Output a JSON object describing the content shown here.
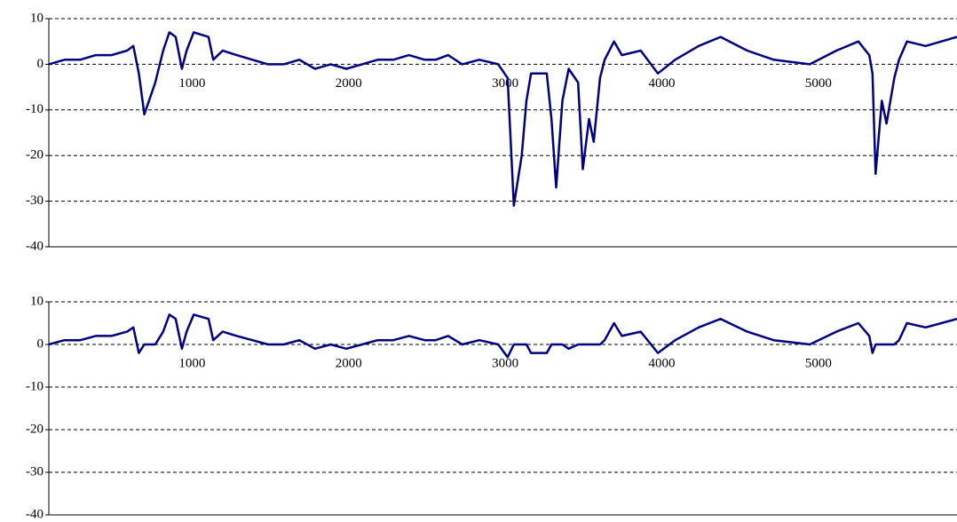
{
  "chart_data": [
    {
      "type": "line",
      "x": [
        0,
        100,
        200,
        300,
        400,
        500,
        540,
        575,
        610,
        680,
        730,
        770,
        810,
        850,
        880,
        925,
        1020,
        1050,
        1110,
        1200,
        1300,
        1400,
        1500,
        1600,
        1700,
        1800,
        1900,
        2000,
        2100,
        2200,
        2300,
        2400,
        2470,
        2550,
        2640,
        2750,
        2870,
        2930,
        2970,
        3020,
        3050,
        3080,
        3180,
        3210,
        3240,
        3280,
        3320,
        3380,
        3410,
        3450,
        3480,
        3520,
        3550,
        3610,
        3660,
        3780,
        3890,
        4000,
        4150,
        4290,
        4460,
        4630,
        4860,
        5030,
        5170,
        5240,
        5260,
        5280,
        5320,
        5350,
        5400,
        5430,
        5480,
        5600,
        5700,
        5800
      ],
      "series": [
        {
          "color": "#000080",
          "values": [
            0,
            1,
            1,
            2,
            2,
            3,
            4,
            -2,
            -11,
            -4,
            3,
            7,
            6,
            -1,
            3,
            7,
            6,
            1,
            3,
            2,
            1,
            0,
            0,
            1,
            -1,
            0,
            -1,
            0,
            1,
            1,
            2,
            1,
            1,
            2,
            0,
            1,
            0,
            -3,
            -31,
            -20,
            -8,
            -2,
            -2,
            -12,
            -27,
            -8,
            -1,
            -4,
            -23,
            -12,
            -17,
            -3,
            1,
            5,
            2,
            3,
            -2,
            1,
            4,
            6,
            3,
            1,
            0,
            3,
            5,
            2,
            -2,
            -24,
            -8,
            -13,
            -3,
            1,
            5,
            4,
            5,
            6
          ]
        }
      ],
      "xlim": [
        0,
        5800
      ],
      "xticks": [
        1000,
        2000,
        3000,
        4000,
        5000
      ],
      "ylim": [
        -40,
        10
      ],
      "yticks": [
        -40,
        -30,
        -20,
        -10,
        0,
        10
      ],
      "grid": true
    },
    {
      "type": "line",
      "x": [
        0,
        100,
        200,
        300,
        400,
        500,
        540,
        575,
        610,
        680,
        730,
        770,
        810,
        850,
        880,
        925,
        1020,
        1050,
        1110,
        1200,
        1300,
        1400,
        1500,
        1600,
        1700,
        1800,
        1900,
        2000,
        2100,
        2200,
        2300,
        2400,
        2470,
        2550,
        2640,
        2750,
        2870,
        2930,
        2970,
        3020,
        3050,
        3080,
        3180,
        3210,
        3240,
        3280,
        3320,
        3380,
        3410,
        3450,
        3480,
        3520,
        3550,
        3610,
        3660,
        3780,
        3890,
        4000,
        4150,
        4290,
        4460,
        4630,
        4860,
        5030,
        5170,
        5240,
        5260,
        5280,
        5320,
        5350,
        5400,
        5430,
        5480,
        5600,
        5700,
        5800
      ],
      "series": [
        {
          "color": "#000080",
          "values": [
            0,
            1,
            1,
            2,
            2,
            3,
            4,
            -2,
            0,
            0,
            3,
            7,
            6,
            -1,
            3,
            7,
            6,
            1,
            3,
            2,
            1,
            0,
            0,
            1,
            -1,
            0,
            -1,
            0,
            1,
            1,
            2,
            1,
            1,
            2,
            0,
            1,
            0,
            -3,
            0,
            0,
            0,
            -2,
            -2,
            0,
            0,
            0,
            -1,
            0,
            0,
            0,
            0,
            0,
            1,
            5,
            2,
            3,
            -2,
            1,
            4,
            6,
            3,
            1,
            0,
            3,
            5,
            2,
            -2,
            0,
            0,
            0,
            0,
            1,
            5,
            4,
            5,
            6
          ]
        }
      ],
      "xlim": [
        0,
        5800
      ],
      "xticks": [
        1000,
        2000,
        3000,
        4000,
        5000
      ],
      "ylim": [
        -40,
        10
      ],
      "yticks": [
        -40,
        -30,
        -20,
        -10,
        0,
        10
      ],
      "grid": true
    }
  ]
}
